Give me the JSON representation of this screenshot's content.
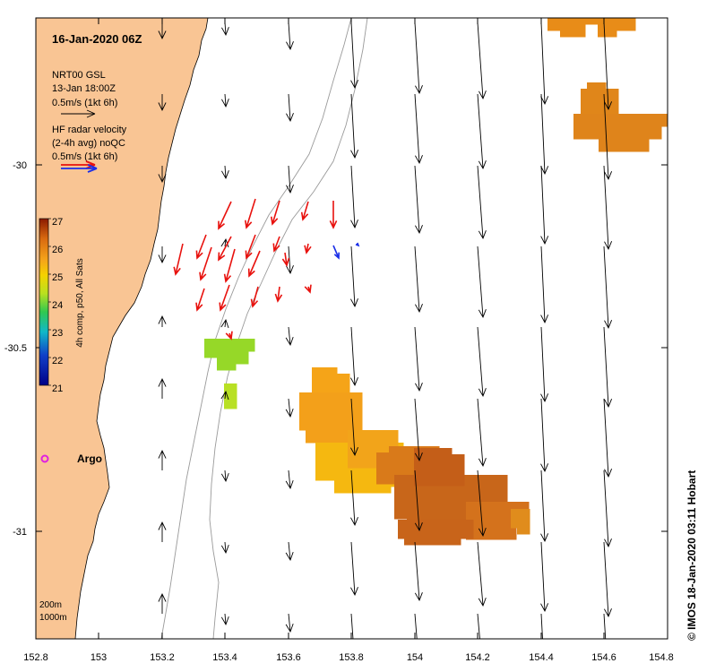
{
  "title": "16-Jan-2020 06Z",
  "model_legend": {
    "line1": "NRT00 GSL",
    "line2": "13-Jan 18:00Z",
    "line3": "0.5m/s (1kt 6h)"
  },
  "radar_legend": {
    "line1": "HF radar velocity",
    "line2": "(2-4h avg) noQC",
    "line3": "0.5m/s (1kt 6h)"
  },
  "colorbar": {
    "label": "4h comp, p50, All Sats",
    "ticks": [
      "27",
      "26",
      "25",
      "24",
      "23",
      "22",
      "21"
    ],
    "min": 21,
    "max": 27
  },
  "argo_label": "Argo",
  "depth_legend": {
    "a": "200m",
    "b": "1000m"
  },
  "credit": "© IMOS 18-Jan-2020 03:11 Hobart",
  "x_ticks": [
    "152.8",
    "153",
    "153.2",
    "153.4",
    "153.6",
    "153.8",
    "154",
    "154.2",
    "154.4",
    "154.6",
    "154.8"
  ],
  "y_ticks": [
    "-30",
    "-30.5",
    "-31"
  ],
  "colors": {
    "land": "#f9c594",
    "radar_inshore": "#e8120e",
    "radar_blue": "#1a2ee8",
    "argo": "#e020e0",
    "isobath": "#9a9a9a"
  }
}
